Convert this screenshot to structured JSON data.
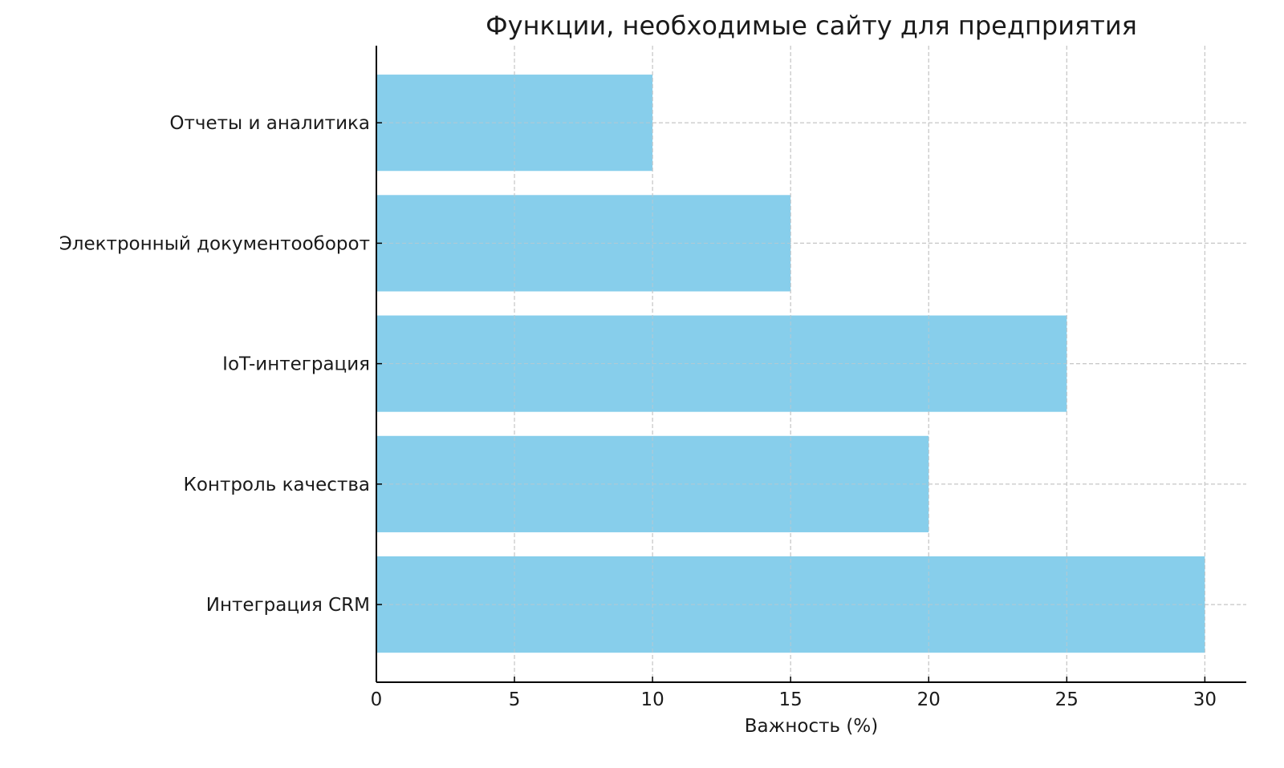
{
  "chart_data": {
    "type": "bar",
    "orientation": "horizontal",
    "title": "Функции, необходимые сайту для предприятия",
    "xlabel": "Важность (%)",
    "ylabel": "",
    "categories": [
      "Интеграция CRM",
      "Контроль качества",
      "IoT-интеграция",
      "Электронный документооборот",
      "Отчеты и аналитика"
    ],
    "values": [
      30,
      20,
      25,
      15,
      10
    ],
    "xlim": [
      0,
      31.5
    ],
    "xticks": [
      0,
      5,
      10,
      15,
      20,
      25,
      30
    ],
    "grid": true,
    "bar_color": "#87CEEB",
    "grid_color": "#c8c8c8"
  }
}
